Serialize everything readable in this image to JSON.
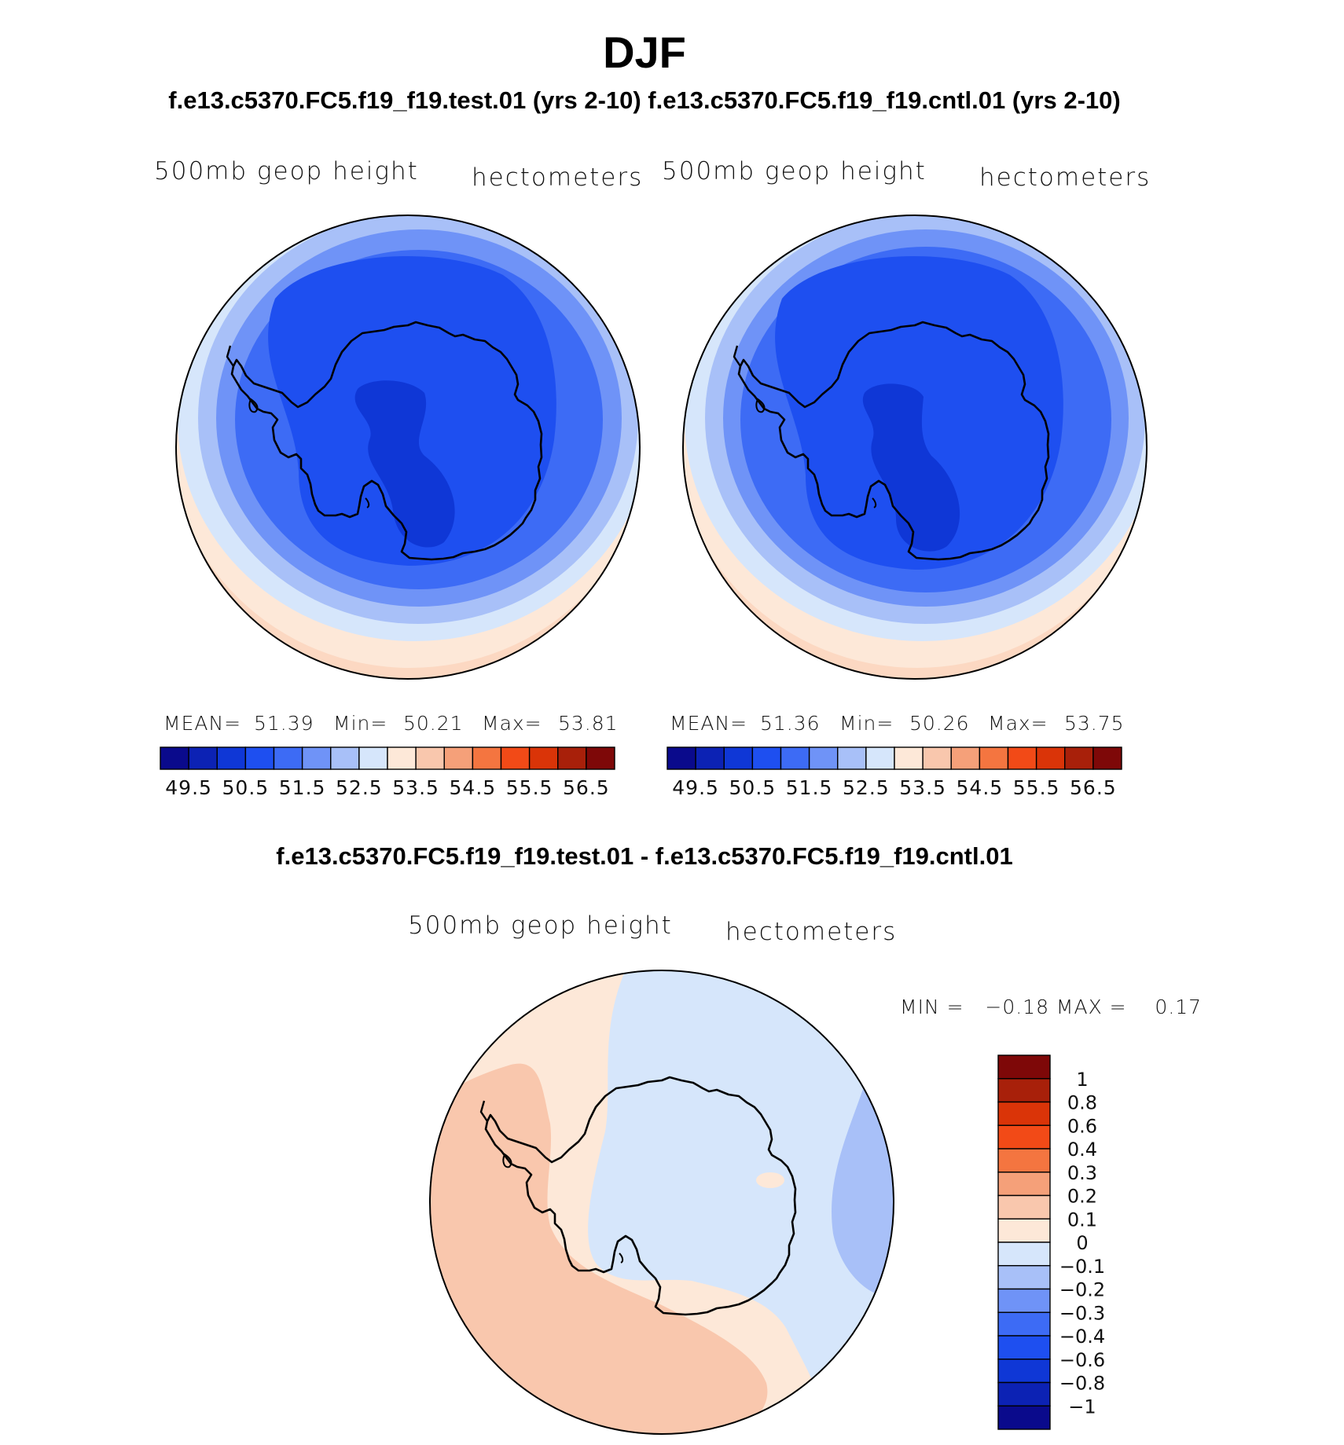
{
  "title": "DJF",
  "subtitle": "f.e13.c5370.FC5.f19_f19.test.01 (yrs 2-10) f.e13.c5370.FC5.f19_f19.cntl.01 (yrs 2-10)",
  "panels": [
    {
      "variable": "500mb geop height",
      "units": "hectometers",
      "stats": {
        "mean_label": "MEAN=",
        "mean": "51.39",
        "min_label": "Min=",
        "min": "50.21",
        "max_label": "Max=",
        "max": "53.81"
      }
    },
    {
      "variable": "500mb geop height",
      "units": "hectometers",
      "stats": {
        "mean_label": "MEAN=",
        "mean": "51.36",
        "min_label": "Min=",
        "min": "50.26",
        "max_label": "Max=",
        "max": "53.75"
      }
    }
  ],
  "colorbar": {
    "colors": [
      "#0a0a8c",
      "#0c22b4",
      "#0f37d6",
      "#1e4ff0",
      "#3d6bf5",
      "#6f93f7",
      "#a8c0f8",
      "#d6e6fb",
      "#fde8d8",
      "#f9c7ad",
      "#f5a079",
      "#f47540",
      "#f24a17",
      "#da3408",
      "#a8200a",
      "#7e0808"
    ],
    "tick_labels": [
      "49.5",
      "50.5",
      "51.5",
      "52.5",
      "53.5",
      "54.5",
      "55.5",
      "56.5"
    ]
  },
  "difference": {
    "title": "f.e13.c5370.FC5.f19_f19.test.01 - f.e13.c5370.FC5.f19_f19.cntl.01",
    "variable": "500mb geop height",
    "units": "hectometers",
    "stats_text": "MIN =   −0.18 MAX =    0.17",
    "colorbar": {
      "colors": [
        "#7e0808",
        "#a8200a",
        "#da3408",
        "#f24a17",
        "#f47540",
        "#f5a079",
        "#f9c7ad",
        "#fde8d8",
        "#d6e6fb",
        "#a8c0f8",
        "#6f93f7",
        "#3d6bf5",
        "#1e4ff0",
        "#0f37d6",
        "#0c22b4",
        "#0a0a8c"
      ],
      "tick_labels": [
        "1",
        "0.8",
        "0.6",
        "0.4",
        "0.3",
        "0.2",
        "0.1",
        "0",
        "−0.1",
        "−0.2",
        "−0.3",
        "−0.4",
        "−0.6",
        "−0.8",
        "−1"
      ]
    }
  }
}
